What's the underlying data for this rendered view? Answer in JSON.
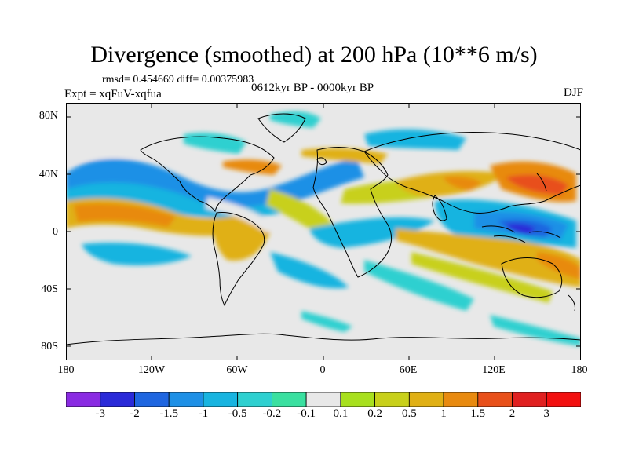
{
  "header": {
    "title": "Divergence (smoothed) at 200 hPa (10**6 m/s)",
    "stats": "rmsd= 0.454669 diff= 0.00375983",
    "experiment": "Expt = xqFuV-xqfua",
    "period": "0612kyr BP - 0000kyr BP",
    "season": "DJF"
  },
  "axes": {
    "lat_labels": [
      "80N",
      "40N",
      "0",
      "40S",
      "80S"
    ],
    "lon_labels": [
      "180",
      "120W",
      "60W",
      "0",
      "60E",
      "120E",
      "180"
    ]
  },
  "colorbar": {
    "labels": [
      "-3",
      "-2",
      "-1.5",
      "-1",
      "-0.5",
      "-0.2",
      "-0.1",
      "0.1",
      "0.2",
      "0.5",
      "1",
      "1.5",
      "2",
      "3"
    ],
    "colors": [
      "#8a2be2",
      "#2a2ad8",
      "#1f66e0",
      "#1e90e6",
      "#18b4e0",
      "#2ed0d0",
      "#3ae0a0",
      "#e8e8e8",
      "#a8e01e",
      "#c8d01a",
      "#e0b015",
      "#e88a10",
      "#e8501a",
      "#e02020",
      "#f21010"
    ]
  },
  "map": {
    "background": "#e8e8e8",
    "land_outline": "#000000"
  }
}
